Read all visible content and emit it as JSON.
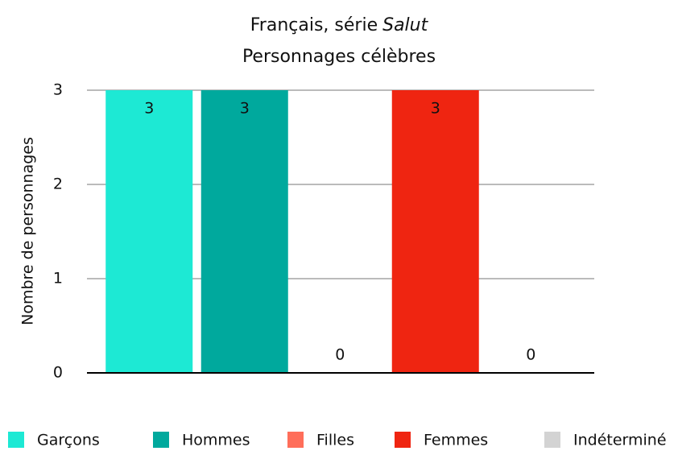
{
  "chart_data": {
    "type": "bar",
    "title_parts": [
      "Français, série",
      "Salut"
    ],
    "subtitle": "Personnages célèbres",
    "y_label": "Nombre de personnages",
    "series": [
      {
        "name": "Garçons",
        "color": "#1de9d4",
        "values": [
          3
        ]
      },
      {
        "name": "Hommes",
        "color": "#00a99d",
        "values": [
          3
        ]
      },
      {
        "name": "Filles",
        "color": "#ff6e5a",
        "values": [
          0
        ]
      },
      {
        "name": "Femmes",
        "color": "#ef2511",
        "values": [
          3
        ]
      },
      {
        "name": "Indéterminé",
        "color": "#d3d3d3",
        "values": [
          0
        ]
      }
    ],
    "ylim": [
      0,
      3
    ],
    "yticks": [
      0,
      1,
      2,
      3
    ],
    "grid": true
  }
}
